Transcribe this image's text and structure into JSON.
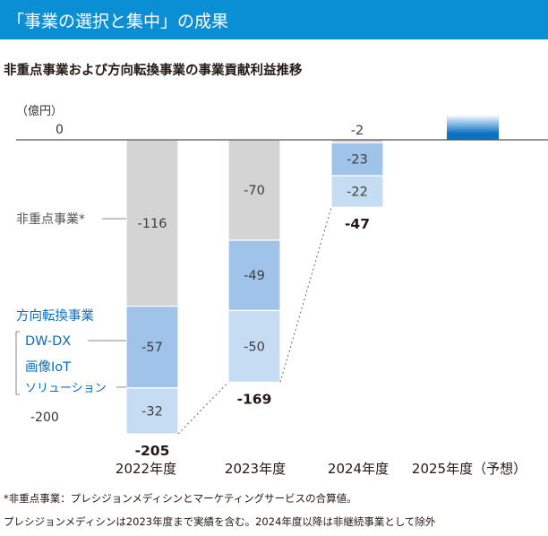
{
  "banner": {
    "title": "「事業の選択と集中」の成果"
  },
  "subtitle": "非重点事業および方向転換事業の事業貢献利益推移",
  "chart_data": {
    "type": "bar",
    "stacked": true,
    "unit": "（億円）",
    "ylim": [
      -205,
      0
    ],
    "y_ticks": [
      {
        "value": 0,
        "label": "0"
      },
      {
        "value": -200,
        "label": "-200"
      }
    ],
    "categories": [
      "2022年度",
      "2023年度",
      "2024年度",
      "2025年度（予想）"
    ],
    "series": [
      {
        "name": "非重点事業",
        "label": "非重点事業*",
        "color": "#d4d4d4",
        "values": [
          -116,
          -70,
          -2,
          null
        ]
      },
      {
        "name": "DW-DX",
        "label": "DW-DX",
        "color": "#9fc3e9",
        "values": [
          -57,
          -49,
          -23,
          null
        ]
      },
      {
        "name": "画像IoTソリューション",
        "label": "画像IoT\nソリューション",
        "color": "#c5dcf2",
        "values": [
          -32,
          -50,
          -22,
          null
        ]
      }
    ],
    "totals": [
      "-205",
      "-169",
      "-47",
      null
    ],
    "group_label": "方向転換事業",
    "forecast_color": "#0a72c2"
  },
  "footnotes": [
    "*非重点事業：プレシジョンメディシンとマーケティングサービスの合算値。",
    "プレシジョンメディシンは2023年度まで実績を含む。2024年度以降は非継続事業として除外"
  ]
}
